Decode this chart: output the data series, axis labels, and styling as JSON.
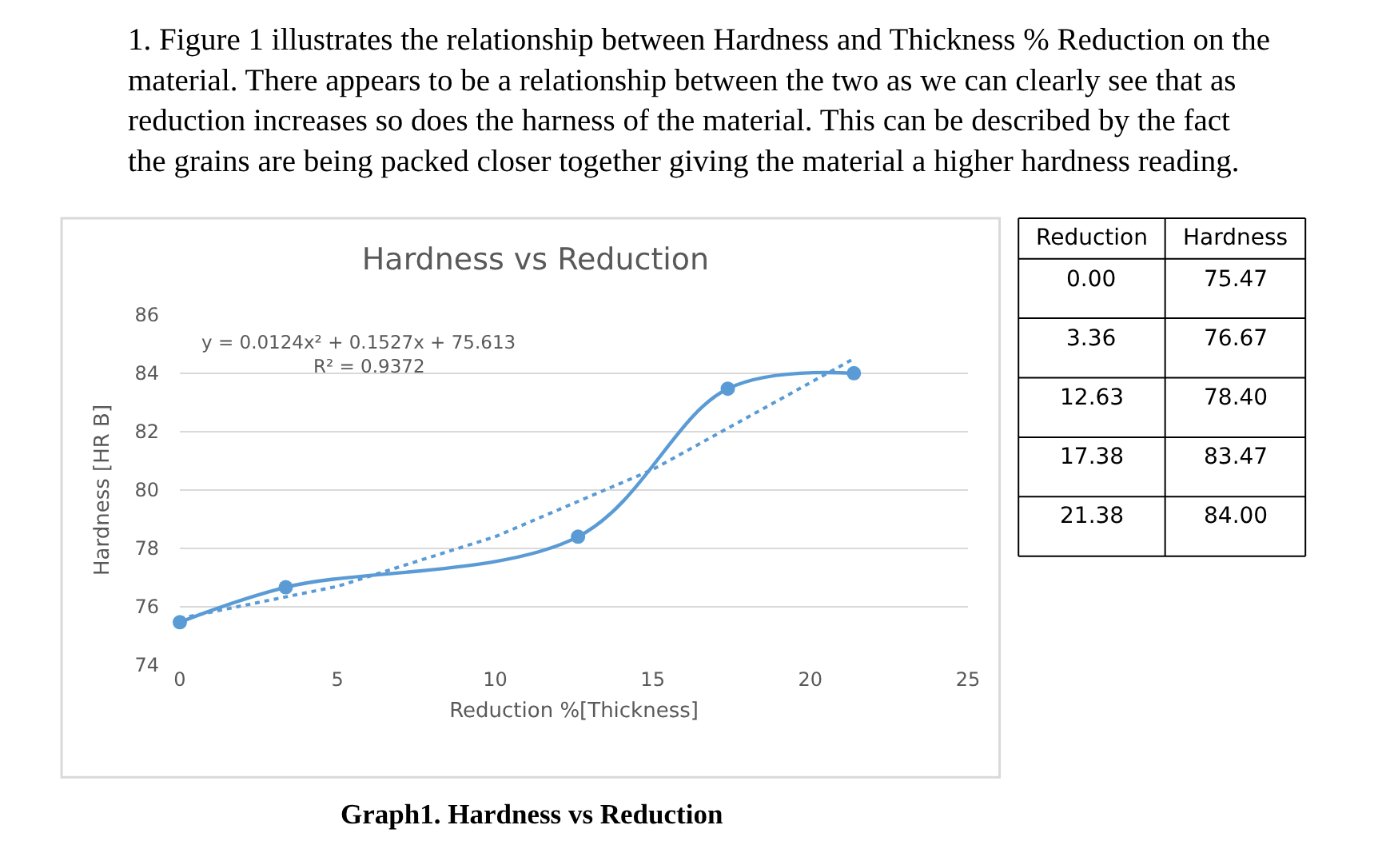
{
  "chart_data": {
    "type": "line",
    "title": "Hardness vs Reduction",
    "xlabel": "Reduction %[Thickness]",
    "ylabel": "Hardness [HR B]",
    "x": [
      0,
      3.36,
      12.63,
      17.38,
      21.38
    ],
    "series": [
      {
        "color": "#5b9bd5",
        "marker": "circle",
        "line_style": "solid",
        "values": [
          75.47,
          76.67,
          78.4,
          83.47,
          84.0
        ]
      },
      {
        "color": "#5b9bd5",
        "marker": "none",
        "line_style": "dotted",
        "x": [
          0,
          5,
          10,
          15,
          21.38
        ],
        "values": [
          75.6,
          76.7,
          78.4,
          80.7,
          84.5
        ]
      }
    ],
    "xlim": [
      0,
      25
    ],
    "xticks": [
      0,
      5,
      10,
      15,
      20,
      25
    ],
    "ylim": [
      74,
      86
    ],
    "yticks": [
      74,
      76,
      78,
      80,
      82,
      84,
      86
    ],
    "grid": "y",
    "legend": false,
    "annotations": [
      "1. Figure 1 illustrates the relationship between Hardness and Thickness % Reduction on the material. There appears to be a relationship between the two as we can clearly see that as reduction increases so does the harness of the material. This can be described by the fact the grains are being packed closer together giving the material a higher hardness reading.",
      "y = 0.0124x² + 0.1527x + 75.613",
      "R² = 0.9372",
      "Graph1. Hardness vs Reduction",
      "Reduction",
      "Hardness",
      "0.00",
      "75.47",
      "3.36",
      "76.67",
      "12.63",
      "78.40",
      "17.38",
      "83.47",
      "21.38",
      "84.00"
    ]
  }
}
